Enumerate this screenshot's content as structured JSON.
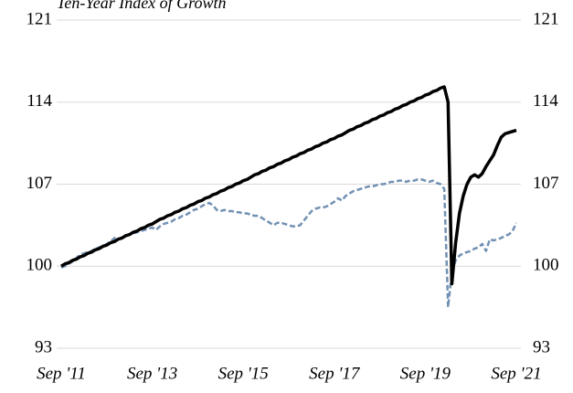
{
  "chart_data": {
    "type": "line",
    "title": "Ten-Year Index of Growth",
    "categories": [
      "Sep '11",
      null,
      null,
      null,
      null,
      null,
      null,
      null,
      null,
      null,
      null,
      null,
      null,
      null,
      null,
      null,
      null,
      null,
      null,
      null,
      null,
      null,
      null,
      null,
      "Sep '13",
      null,
      null,
      null,
      null,
      null,
      null,
      null,
      null,
      null,
      null,
      null,
      null,
      null,
      null,
      null,
      null,
      null,
      null,
      null,
      null,
      null,
      null,
      null,
      "Sep '15",
      null,
      null,
      null,
      null,
      null,
      null,
      null,
      null,
      null,
      null,
      null,
      null,
      null,
      null,
      null,
      null,
      null,
      null,
      null,
      null,
      null,
      null,
      null,
      "Sep '17",
      null,
      null,
      null,
      null,
      null,
      null,
      null,
      null,
      null,
      null,
      null,
      null,
      null,
      null,
      null,
      null,
      null,
      null,
      null,
      null,
      null,
      null,
      null,
      "Sep '19",
      null,
      null,
      null,
      null,
      null,
      null,
      null,
      null,
      null,
      null,
      null,
      null,
      null,
      null,
      null,
      null,
      null,
      null,
      null,
      null,
      null,
      null,
      null,
      "Sep '21"
    ],
    "series": [
      {
        "color": "#000000",
        "dash": false,
        "values": [
          100.0,
          100.2,
          100.3,
          100.5,
          100.6,
          100.8,
          100.9,
          101.1,
          101.2,
          101.4,
          101.5,
          101.7,
          101.8,
          102.0,
          102.1,
          102.3,
          102.4,
          102.6,
          102.7,
          102.9,
          103.0,
          103.2,
          103.3,
          103.5,
          103.6,
          103.8,
          104.0,
          104.1,
          104.3,
          104.4,
          104.6,
          104.7,
          104.9,
          105.0,
          105.2,
          105.3,
          105.5,
          105.6,
          105.8,
          105.9,
          106.1,
          106.2,
          106.4,
          106.5,
          106.7,
          106.8,
          107.0,
          107.1,
          107.3,
          107.4,
          107.6,
          107.8,
          107.9,
          108.1,
          108.2,
          108.4,
          108.5,
          108.7,
          108.8,
          109.0,
          109.1,
          109.3,
          109.4,
          109.6,
          109.7,
          109.9,
          110.0,
          110.2,
          110.3,
          110.5,
          110.6,
          110.8,
          110.9,
          111.1,
          111.2,
          111.4,
          111.6,
          111.7,
          111.9,
          112.0,
          112.2,
          112.3,
          112.5,
          112.6,
          112.8,
          112.9,
          113.1,
          113.2,
          113.4,
          113.5,
          113.7,
          113.8,
          114.0,
          114.1,
          114.3,
          114.4,
          114.6,
          114.7,
          114.9,
          115.0,
          115.2,
          115.3,
          114.0,
          98.5,
          102,
          104.5,
          106,
          107,
          107.6,
          107.8,
          107.6,
          107.9,
          108.5,
          109,
          109.5,
          110.3,
          111,
          111.3,
          111.4,
          111.5,
          111.6
        ]
      },
      {
        "color": "#7191b3",
        "dash": true,
        "values": [
          99.9,
          100.0,
          100.2,
          100.4,
          100.7,
          101.0,
          101.1,
          101.2,
          101.3,
          101.5,
          101.6,
          101.7,
          101.9,
          102.1,
          102.4,
          102.3,
          102.4,
          102.6,
          102.7,
          102.8,
          102.9,
          103.0,
          103.1,
          103.2,
          103.3,
          103.1,
          103.4,
          103.6,
          103.7,
          103.8,
          104.0,
          104.1,
          104.3,
          104.4,
          104.6,
          104.8,
          104.9,
          105.1,
          105.3,
          105.4,
          105.2,
          104.8,
          104.7,
          104.8,
          104.7,
          104.7,
          104.6,
          104.6,
          104.5,
          104.5,
          104.4,
          104.3,
          104.3,
          104.1,
          103.9,
          103.7,
          103.5,
          103.7,
          103.7,
          103.6,
          103.5,
          103.4,
          103.4,
          103.5,
          103.9,
          104.3,
          104.7,
          104.9,
          105.0,
          105.0,
          105.1,
          105.3,
          105.5,
          105.8,
          105.6,
          106.0,
          106.2,
          106.4,
          106.5,
          106.6,
          106.7,
          106.8,
          106.8,
          106.9,
          107.0,
          107.0,
          107.1,
          107.2,
          107.2,
          107.3,
          107.3,
          107.2,
          107.3,
          107.3,
          107.4,
          107.4,
          107.3,
          107.2,
          107.3,
          107.1,
          107.0,
          106.6,
          96.5,
          99.5,
          100.5,
          100.9,
          101.1,
          101.2,
          101.3,
          101.5,
          101.6,
          101.9,
          101.3,
          102.3,
          102.2,
          102.3,
          102.4,
          102.6,
          102.7,
          103.0,
          103.7
        ]
      }
    ],
    "ylim": [
      93,
      121
    ],
    "yticks": [
      93,
      100,
      107,
      114,
      121
    ],
    "y2lim": [
      93,
      121
    ],
    "y2ticks": [
      93,
      100,
      107,
      114,
      121
    ],
    "grid": true
  }
}
